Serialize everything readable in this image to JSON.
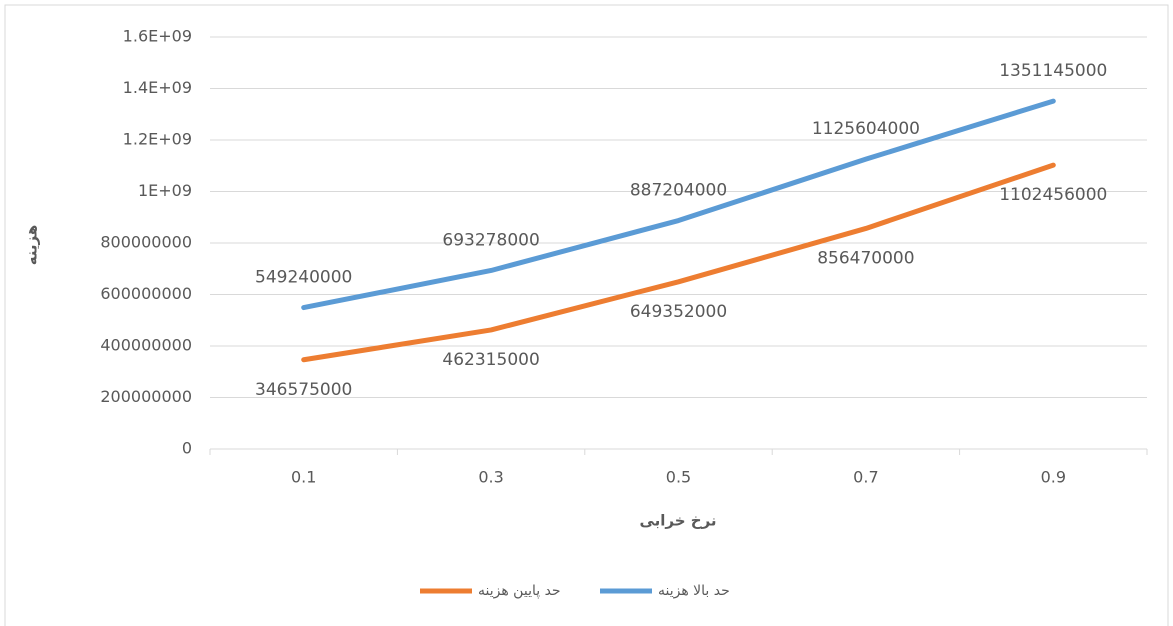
{
  "chart_data": {
    "type": "line",
    "x_label": "نرخ خرابی",
    "y_label": "هزینه",
    "categories": [
      "0.1",
      "0.3",
      "0.5",
      "0.7",
      "0.9"
    ],
    "series": [
      {
        "name": "حد بالا هزینه",
        "color": "#5b9bd5",
        "values": [
          549240000,
          693278000,
          887204000,
          1125604000,
          1351145000
        ]
      },
      {
        "name": "حد پایین هزینه",
        "color": "#ed7d31",
        "values": [
          346575000,
          462315000,
          649352000,
          856470000,
          1102456000
        ]
      }
    ],
    "ylim": [
      0,
      1600000000
    ],
    "yticks": [
      0,
      200000000,
      400000000,
      600000000,
      800000000,
      {
        "value": 1000000000,
        "label": "1E+09"
      },
      {
        "value": 1200000000,
        "label": "1.2E+09"
      },
      {
        "value": 1400000000,
        "label": "1.4E+09"
      },
      {
        "value": 1600000000,
        "label": "1.6E+09"
      }
    ],
    "grid": true,
    "legend": "bottom"
  }
}
